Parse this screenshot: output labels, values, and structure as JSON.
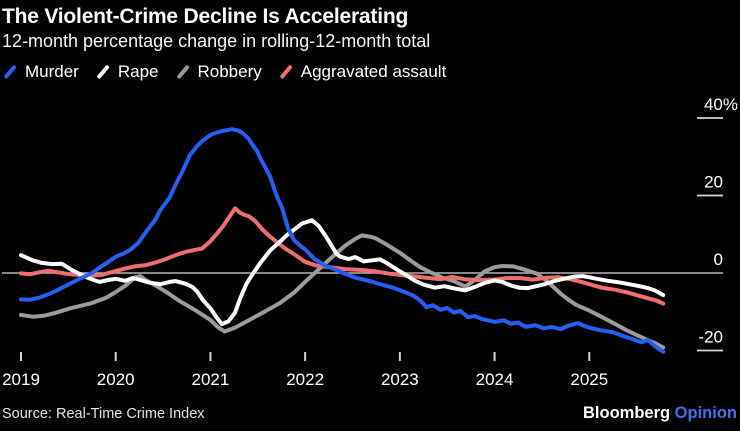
{
  "header": {
    "title": "The Violent-Crime Decline Is Accelerating",
    "subtitle": "12-month percentage change in rolling-12-month total"
  },
  "footer": {
    "source": "Source: Real-Time Crime Index",
    "logo_primary": "Bloomberg",
    "logo_accent": "Opinion",
    "logo_accent_color": "#3d6ff0"
  },
  "chart_data": {
    "type": "line",
    "title": "The Violent-Crime Decline Is Accelerating",
    "subtitle": "12-month percentage change in rolling-12-month total",
    "x_axis": {
      "ticks": [
        2019,
        2020,
        2021,
        2022,
        2023,
        2024,
        2025
      ],
      "range": [
        2019.0,
        2025.83
      ]
    },
    "y_axis": {
      "unit": "percent",
      "range": [
        -24,
        42
      ],
      "ticks": [
        {
          "label": "40%",
          "value": 40
        },
        {
          "label": "20",
          "value": 20
        },
        {
          "label": "0",
          "value": 0
        },
        {
          "label": "-20",
          "value": -20
        }
      ]
    },
    "grid": {
      "zero_line": true,
      "zero_line_color": "#b5b5b5",
      "tick_color": "#d4d4d4",
      "label_color": "#ffffff"
    },
    "legend_position": "top",
    "series": [
      {
        "name": "Murder",
        "color": "#2160f2",
        "z": 4,
        "points": [
          [
            2019.0,
            -6.8
          ],
          [
            2019.1,
            -6.9
          ],
          [
            2019.2,
            -6.3
          ],
          [
            2019.31,
            -5.3
          ],
          [
            2019.41,
            -4.1
          ],
          [
            2019.52,
            -2.7
          ],
          [
            2019.62,
            -1.5
          ],
          [
            2019.75,
            0.0
          ],
          [
            2019.83,
            1.4
          ],
          [
            2019.92,
            2.8
          ],
          [
            2020.0,
            4.2
          ],
          [
            2020.08,
            5.0
          ],
          [
            2020.15,
            5.9
          ],
          [
            2020.24,
            7.8
          ],
          [
            2020.31,
            10.3
          ],
          [
            2020.42,
            13.8
          ],
          [
            2020.47,
            16.2
          ],
          [
            2020.57,
            19.5
          ],
          [
            2020.63,
            22.7
          ],
          [
            2020.7,
            26.0
          ],
          [
            2020.78,
            30.3
          ],
          [
            2020.86,
            32.8
          ],
          [
            2020.91,
            34.0
          ],
          [
            2021.0,
            35.6
          ],
          [
            2021.06,
            36.2
          ],
          [
            2021.12,
            36.6
          ],
          [
            2021.18,
            36.9
          ],
          [
            2021.23,
            37.1
          ],
          [
            2021.29,
            36.8
          ],
          [
            2021.33,
            36.3
          ],
          [
            2021.4,
            34.8
          ],
          [
            2021.44,
            33.2
          ],
          [
            2021.49,
            31.6
          ],
          [
            2021.54,
            29.0
          ],
          [
            2021.63,
            24.9
          ],
          [
            2021.69,
            20.5
          ],
          [
            2021.76,
            16.6
          ],
          [
            2021.82,
            11.5
          ],
          [
            2021.88,
            8.6
          ],
          [
            2021.95,
            7.0
          ],
          [
            2022.0,
            6.1
          ],
          [
            2022.1,
            3.6
          ],
          [
            2022.21,
            1.9
          ],
          [
            2022.31,
            1.0
          ],
          [
            2022.4,
            0.0
          ],
          [
            2022.52,
            -1.1
          ],
          [
            2022.58,
            -1.5
          ],
          [
            2022.7,
            -2.2
          ],
          [
            2022.79,
            -2.9
          ],
          [
            2022.9,
            -3.6
          ],
          [
            2023.0,
            -4.4
          ],
          [
            2023.14,
            -5.8
          ],
          [
            2023.22,
            -7.2
          ],
          [
            2023.28,
            -8.8
          ],
          [
            2023.35,
            -8.3
          ],
          [
            2023.43,
            -9.5
          ],
          [
            2023.5,
            -9.0
          ],
          [
            2023.57,
            -10.2
          ],
          [
            2023.64,
            -9.8
          ],
          [
            2023.72,
            -11.4
          ],
          [
            2023.79,
            -11.1
          ],
          [
            2023.87,
            -11.9
          ],
          [
            2024.0,
            -12.6
          ],
          [
            2024.1,
            -12.2
          ],
          [
            2024.17,
            -13.1
          ],
          [
            2024.25,
            -12.8
          ],
          [
            2024.33,
            -13.9
          ],
          [
            2024.43,
            -13.5
          ],
          [
            2024.52,
            -14.3
          ],
          [
            2024.6,
            -13.9
          ],
          [
            2024.7,
            -14.5
          ],
          [
            2024.78,
            -13.6
          ],
          [
            2024.88,
            -12.9
          ],
          [
            2024.96,
            -13.8
          ],
          [
            2025.05,
            -14.4
          ],
          [
            2025.13,
            -14.8
          ],
          [
            2025.25,
            -15.3
          ],
          [
            2025.35,
            -16.2
          ],
          [
            2025.45,
            -17.0
          ],
          [
            2025.55,
            -17.9
          ],
          [
            2025.62,
            -17.3
          ],
          [
            2025.7,
            -19.0
          ],
          [
            2025.78,
            -20.3
          ]
        ]
      },
      {
        "name": "Rape",
        "color": "#ffffff",
        "z": 3,
        "points": [
          [
            2019.0,
            4.6
          ],
          [
            2019.12,
            3.3
          ],
          [
            2019.22,
            2.6
          ],
          [
            2019.33,
            2.3
          ],
          [
            2019.43,
            2.4
          ],
          [
            2019.52,
            1.0
          ],
          [
            2019.6,
            0.0
          ],
          [
            2019.7,
            -1.2
          ],
          [
            2019.78,
            -1.9
          ],
          [
            2019.83,
            -2.3
          ],
          [
            2019.92,
            -1.8
          ],
          [
            2020.0,
            -1.5
          ],
          [
            2020.1,
            -2.0
          ],
          [
            2020.18,
            -1.3
          ],
          [
            2020.26,
            -1.8
          ],
          [
            2020.36,
            -2.5
          ],
          [
            2020.47,
            -2.9
          ],
          [
            2020.57,
            -2.3
          ],
          [
            2020.63,
            -2.1
          ],
          [
            2020.73,
            -2.7
          ],
          [
            2020.81,
            -3.6
          ],
          [
            2020.86,
            -4.8
          ],
          [
            2020.92,
            -7.0
          ],
          [
            2021.0,
            -9.1
          ],
          [
            2021.06,
            -11.3
          ],
          [
            2021.12,
            -13.2
          ],
          [
            2021.19,
            -12.5
          ],
          [
            2021.26,
            -10.2
          ],
          [
            2021.31,
            -6.8
          ],
          [
            2021.38,
            -2.8
          ],
          [
            2021.44,
            -0.5
          ],
          [
            2021.52,
            2.4
          ],
          [
            2021.63,
            5.8
          ],
          [
            2021.73,
            8.0
          ],
          [
            2021.81,
            9.8
          ],
          [
            2021.9,
            11.5
          ],
          [
            2021.97,
            12.8
          ],
          [
            2022.07,
            13.6
          ],
          [
            2022.14,
            12.2
          ],
          [
            2022.21,
            9.8
          ],
          [
            2022.26,
            7.8
          ],
          [
            2022.33,
            5.0
          ],
          [
            2022.37,
            4.2
          ],
          [
            2022.46,
            3.6
          ],
          [
            2022.53,
            4.1
          ],
          [
            2022.62,
            3.0
          ],
          [
            2022.72,
            3.3
          ],
          [
            2022.79,
            3.5
          ],
          [
            2022.86,
            2.6
          ],
          [
            2022.93,
            1.5
          ],
          [
            2023.0,
            0.4
          ],
          [
            2023.07,
            -0.6
          ],
          [
            2023.16,
            -2.0
          ],
          [
            2023.25,
            -3.0
          ],
          [
            2023.37,
            -3.8
          ],
          [
            2023.47,
            -3.4
          ],
          [
            2023.58,
            -4.0
          ],
          [
            2023.69,
            -4.5
          ],
          [
            2023.8,
            -3.5
          ],
          [
            2023.9,
            -2.5
          ],
          [
            2024.0,
            -1.9
          ],
          [
            2024.08,
            -2.3
          ],
          [
            2024.17,
            -3.2
          ],
          [
            2024.26,
            -3.8
          ],
          [
            2024.35,
            -3.9
          ],
          [
            2024.44,
            -3.4
          ],
          [
            2024.54,
            -2.8
          ],
          [
            2024.63,
            -2.1
          ],
          [
            2024.73,
            -1.5
          ],
          [
            2024.85,
            -0.9
          ],
          [
            2024.93,
            -0.8
          ],
          [
            2025.0,
            -1.1
          ],
          [
            2025.1,
            -1.6
          ],
          [
            2025.2,
            -2.0
          ],
          [
            2025.31,
            -2.4
          ],
          [
            2025.42,
            -2.9
          ],
          [
            2025.53,
            -3.4
          ],
          [
            2025.62,
            -3.9
          ],
          [
            2025.7,
            -4.6
          ],
          [
            2025.78,
            -5.7
          ]
        ]
      },
      {
        "name": "Robbery",
        "color": "#9b9b9b",
        "z": 1,
        "points": [
          [
            2019.0,
            -10.8
          ],
          [
            2019.13,
            -11.3
          ],
          [
            2019.25,
            -11.0
          ],
          [
            2019.36,
            -10.3
          ],
          [
            2019.52,
            -9.1
          ],
          [
            2019.73,
            -7.9
          ],
          [
            2019.9,
            -6.4
          ],
          [
            2020.0,
            -4.9
          ],
          [
            2020.1,
            -3.3
          ],
          [
            2020.2,
            -1.2
          ],
          [
            2020.26,
            -0.8
          ],
          [
            2020.31,
            -1.7
          ],
          [
            2020.42,
            -3.2
          ],
          [
            2020.52,
            -4.7
          ],
          [
            2020.68,
            -7.3
          ],
          [
            2020.84,
            -9.6
          ],
          [
            2021.0,
            -12.1
          ],
          [
            2021.08,
            -14.0
          ],
          [
            2021.15,
            -15.1
          ],
          [
            2021.26,
            -14.1
          ],
          [
            2021.42,
            -12.0
          ],
          [
            2021.57,
            -10.0
          ],
          [
            2021.73,
            -7.8
          ],
          [
            2021.88,
            -5.1
          ],
          [
            2022.0,
            -2.3
          ],
          [
            2022.12,
            0.4
          ],
          [
            2022.26,
            3.6
          ],
          [
            2022.42,
            7.0
          ],
          [
            2022.53,
            8.8
          ],
          [
            2022.6,
            9.7
          ],
          [
            2022.68,
            9.4
          ],
          [
            2022.74,
            9.0
          ],
          [
            2022.85,
            7.5
          ],
          [
            2023.0,
            5.2
          ],
          [
            2023.12,
            3.1
          ],
          [
            2023.21,
            1.6
          ],
          [
            2023.32,
            0.2
          ],
          [
            2023.45,
            -1.2
          ],
          [
            2023.58,
            -2.2
          ],
          [
            2023.69,
            -3.5
          ],
          [
            2023.78,
            -2.0
          ],
          [
            2023.9,
            0.5
          ],
          [
            2024.0,
            1.5
          ],
          [
            2024.08,
            1.8
          ],
          [
            2024.2,
            1.7
          ],
          [
            2024.33,
            0.8
          ],
          [
            2024.45,
            -0.2
          ],
          [
            2024.55,
            -2.0
          ],
          [
            2024.62,
            -3.6
          ],
          [
            2024.7,
            -5.4
          ],
          [
            2024.78,
            -6.9
          ],
          [
            2024.86,
            -8.2
          ],
          [
            2025.0,
            -9.7
          ],
          [
            2025.13,
            -11.3
          ],
          [
            2025.26,
            -13.0
          ],
          [
            2025.39,
            -14.7
          ],
          [
            2025.5,
            -16.0
          ],
          [
            2025.6,
            -17.1
          ],
          [
            2025.7,
            -18.2
          ],
          [
            2025.78,
            -19.2
          ]
        ]
      },
      {
        "name": "Aggravated assault",
        "color": "#ef6d6e",
        "z": 2,
        "points": [
          [
            2019.0,
            -0.1
          ],
          [
            2019.1,
            -0.3
          ],
          [
            2019.2,
            0.2
          ],
          [
            2019.29,
            0.6
          ],
          [
            2019.38,
            0.2
          ],
          [
            2019.48,
            -0.2
          ],
          [
            2019.6,
            -0.5
          ],
          [
            2019.73,
            -0.7
          ],
          [
            2019.85,
            -0.5
          ],
          [
            2020.0,
            0.5
          ],
          [
            2020.1,
            1.2
          ],
          [
            2020.2,
            1.7
          ],
          [
            2020.31,
            2.0
          ],
          [
            2020.42,
            2.7
          ],
          [
            2020.52,
            3.5
          ],
          [
            2020.63,
            4.6
          ],
          [
            2020.73,
            5.4
          ],
          [
            2020.84,
            6.0
          ],
          [
            2020.91,
            6.3
          ],
          [
            2021.0,
            8.2
          ],
          [
            2021.07,
            10.2
          ],
          [
            2021.14,
            12.3
          ],
          [
            2021.2,
            14.5
          ],
          [
            2021.26,
            16.7
          ],
          [
            2021.31,
            15.6
          ],
          [
            2021.36,
            15.0
          ],
          [
            2021.41,
            14.6
          ],
          [
            2021.48,
            13.2
          ],
          [
            2021.55,
            11.2
          ],
          [
            2021.63,
            9.4
          ],
          [
            2021.7,
            8.0
          ],
          [
            2021.79,
            6.3
          ],
          [
            2021.88,
            4.9
          ],
          [
            2022.0,
            2.9
          ],
          [
            2022.12,
            1.9
          ],
          [
            2022.26,
            1.5
          ],
          [
            2022.42,
            1.0
          ],
          [
            2022.58,
            0.8
          ],
          [
            2022.74,
            0.4
          ],
          [
            2022.9,
            -0.2
          ],
          [
            2023.0,
            -0.5
          ],
          [
            2023.16,
            -0.9
          ],
          [
            2023.3,
            -1.3
          ],
          [
            2023.43,
            -1.6
          ],
          [
            2023.55,
            -1.0
          ],
          [
            2023.68,
            -1.6
          ],
          [
            2023.83,
            -1.8
          ],
          [
            2024.0,
            -1.7
          ],
          [
            2024.13,
            -1.3
          ],
          [
            2024.26,
            -1.3
          ],
          [
            2024.4,
            -1.7
          ],
          [
            2024.55,
            -1.2
          ],
          [
            2024.68,
            -1.1
          ],
          [
            2024.8,
            -1.6
          ],
          [
            2024.92,
            -2.3
          ],
          [
            2025.0,
            -2.9
          ],
          [
            2025.13,
            -3.8
          ],
          [
            2025.27,
            -4.3
          ],
          [
            2025.4,
            -5.0
          ],
          [
            2025.53,
            -5.9
          ],
          [
            2025.63,
            -6.6
          ],
          [
            2025.71,
            -7.1
          ],
          [
            2025.78,
            -7.9
          ]
        ]
      }
    ]
  }
}
